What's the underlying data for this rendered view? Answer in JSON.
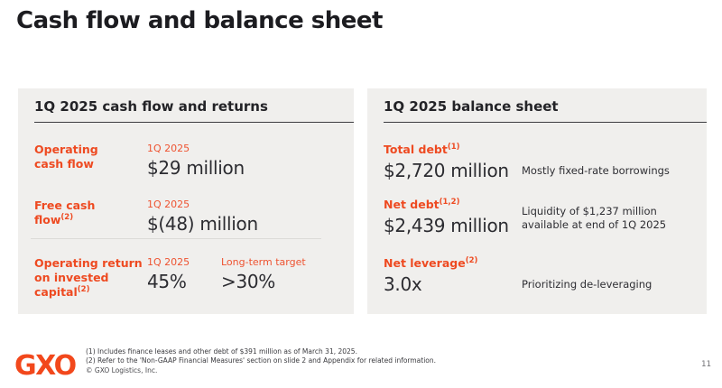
{
  "slide": {
    "title": "Cash flow and balance sheet",
    "page_number": "11"
  },
  "colors": {
    "accent": "#ee4a21",
    "panel_background": "#f0efed",
    "text_dark": "#242428"
  },
  "left_panel": {
    "header": "1Q 2025 cash flow and returns",
    "rows": [
      {
        "label": "Operating\ncash flow",
        "sup": "",
        "period": "1Q 2025",
        "value": "$29 million"
      },
      {
        "label": "Free cash\nflow",
        "sup": "(2)",
        "period": "1Q 2025",
        "value": "$(48) million"
      },
      {
        "label": "Operating return\non invested\ncapital",
        "sup": "(2)",
        "period": "1Q 2025",
        "value": "45%",
        "target_label": "Long-term target",
        "target_value": ">30%"
      }
    ]
  },
  "right_panel": {
    "header": "1Q 2025 balance sheet",
    "rows": [
      {
        "label": "Total debt",
        "sup": "(1)",
        "value": "$2,720 million",
        "note": "Mostly fixed-rate borrowings"
      },
      {
        "label": "Net debt",
        "sup": "(1,2)",
        "value": "$2,439 million",
        "note": "Liquidity of $1,237 million\navailable at end of 1Q 2025"
      },
      {
        "label": "Net leverage",
        "sup": "(2)",
        "value": "3.0x",
        "note": "Prioritizing de-leveraging"
      }
    ]
  },
  "footer": {
    "logo_text": "GXO",
    "footnote_1": "(1) Includes finance leases and other debt of $391 million as of March 31, 2025.",
    "footnote_2": "(2) Refer to the 'Non-GAAP Financial Measures' section on slide 2 and Appendix for related information.",
    "copyright": "© GXO Logistics, Inc."
  }
}
